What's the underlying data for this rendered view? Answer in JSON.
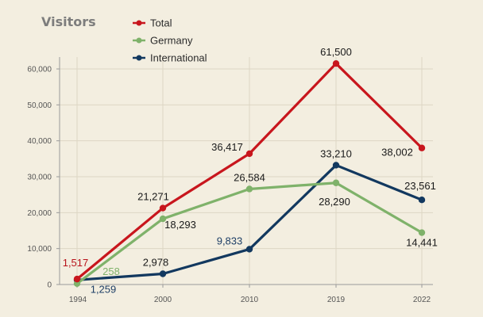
{
  "chart_data": {
    "type": "line",
    "title": "Visitors",
    "xlabel": "",
    "ylabel": "",
    "categories": [
      "1994",
      "2000",
      "2010",
      "2019",
      "2022"
    ],
    "ylim": [
      0,
      60000
    ],
    "yticks": [
      0,
      10000,
      20000,
      30000,
      40000,
      50000,
      60000
    ],
    "ytick_labels": [
      "0",
      "10,000",
      "20,000",
      "30,000",
      "40,000",
      "50,000",
      "60,000"
    ],
    "grid": true,
    "legend_position": "top-left",
    "series": [
      {
        "name": "Total",
        "color": "#c8161d",
        "values": [
          1517,
          21271,
          36417,
          61500,
          38002
        ],
        "labels": [
          "1,517",
          "21,271",
          "36,417",
          "61,500",
          "38,002"
        ]
      },
      {
        "name": "Germany",
        "color": "#7fb26a",
        "values": [
          258,
          18293,
          26584,
          28290,
          14441
        ],
        "labels": [
          "258",
          "18,293",
          "26,584",
          "28,290",
          "14,441"
        ]
      },
      {
        "name": "International",
        "color": "#12385f",
        "values": [
          1259,
          2978,
          9833,
          33210,
          23561
        ],
        "labels": [
          "1,259",
          "2,978",
          "9,833",
          "33,210",
          "23,561"
        ]
      }
    ]
  }
}
